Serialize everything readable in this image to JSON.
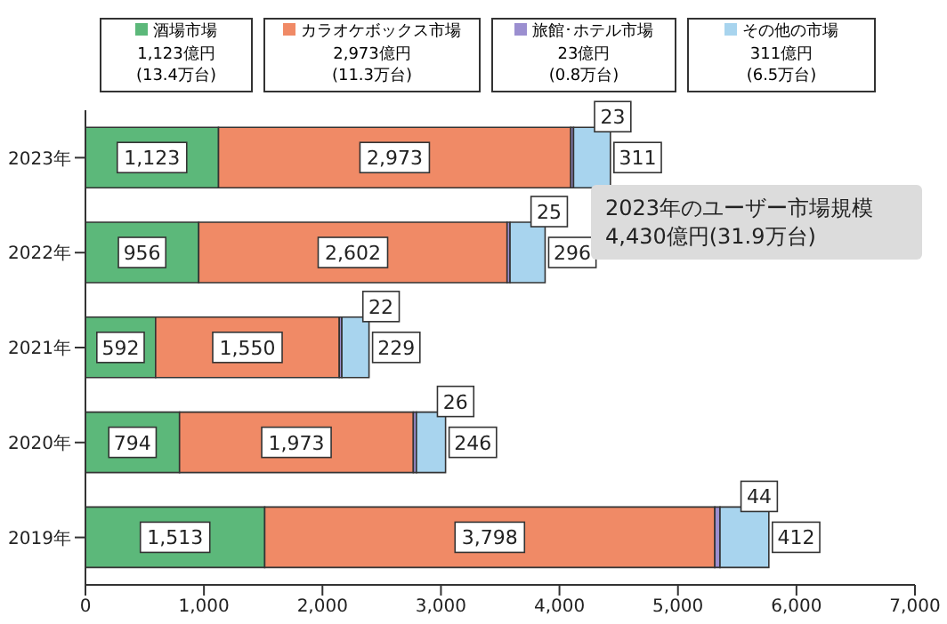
{
  "chart_data": {
    "type": "bar",
    "orientation": "horizontal",
    "stacked": true,
    "categories": [
      "2023年",
      "2022年",
      "2021年",
      "2020年",
      "2019年"
    ],
    "series": [
      {
        "name": "酒場市場",
        "color": "#5cb87a",
        "values": [
          1123,
          956,
          592,
          794,
          1513
        ],
        "value_labels": [
          "1,123",
          "956",
          "592",
          "794",
          "1,513"
        ]
      },
      {
        "name": "カラオケボックス市場",
        "color": "#f08a66",
        "values": [
          2973,
          2602,
          1550,
          1973,
          3798
        ],
        "value_labels": [
          "2,973",
          "2,602",
          "1,550",
          "1,973",
          "3,798"
        ]
      },
      {
        "name": "旅館･ホテル市場",
        "color": "#9b8fd0",
        "values": [
          23,
          25,
          22,
          26,
          44
        ],
        "value_labels": [
          "23",
          "25",
          "22",
          "26",
          "44"
        ]
      },
      {
        "name": "その他の市場",
        "color": "#a8d4ee",
        "values": [
          311,
          296,
          229,
          246,
          412
        ],
        "value_labels": [
          "311",
          "296",
          "229",
          "246",
          "412"
        ]
      }
    ],
    "xlim": [
      0,
      7000
    ],
    "xticks": [
      {
        "value": 0,
        "label": "0"
      },
      {
        "value": 1000,
        "label": "1,000"
      },
      {
        "value": 2000,
        "label": "2,000"
      },
      {
        "value": 3000,
        "label": "3,000"
      },
      {
        "value": 4000,
        "label": "4,000"
      },
      {
        "value": 5000,
        "label": "5,000"
      },
      {
        "value": 6000,
        "label": "6,000"
      },
      {
        "value": 7000,
        "label": "7,000"
      }
    ],
    "legend": "top",
    "annotations": [
      "1,123億円",
      "(13.4万台)",
      "2,973億円",
      "(11.3万台)",
      "23億円",
      "(0.8万台)",
      "311億円",
      "(6.5万台)",
      "2023年のユーザー市場規模",
      "4,430億円(31.9万台)"
    ]
  }
}
